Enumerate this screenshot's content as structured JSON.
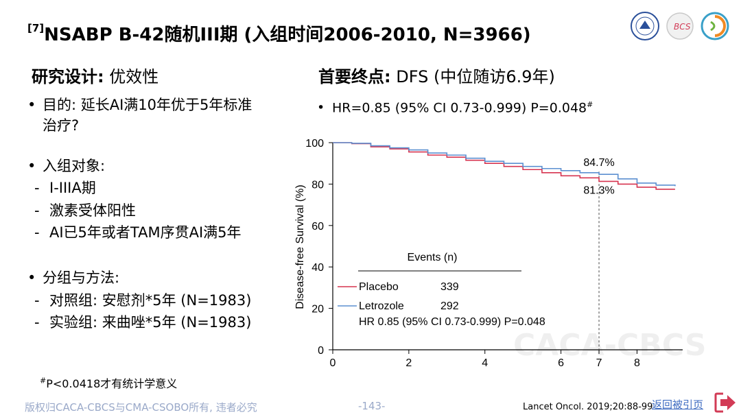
{
  "slide": {
    "title_ref": "[7]",
    "title": "NSABP B-42随机III期 (入组时间2006-2010, N=3966)"
  },
  "left": {
    "design_label": "研究设计:",
    "design_value": " 优效性",
    "purpose_line1": "目的: 延长AI满10年优于5年标准",
    "purpose_line2": "治疗?",
    "population_title": "入组对象:",
    "population_items": [
      "I-IIIA期",
      "激素受体阳性",
      "AI已5年或者TAM序贯AI满5年"
    ],
    "grouping_title": "分组与方法:",
    "grouping_items": [
      "对照组: 安慰剂*5年 (N=1983)",
      "实验组: 来曲唑*5年 (N=1983)"
    ]
  },
  "right": {
    "endpoint_label": "首要终点:",
    "endpoint_value": " DFS (中位随访6.9年)",
    "hr_line": "HR=0.85 (95% CI 0.73-0.999) P=0.048",
    "hr_sup": "#"
  },
  "chart_data": {
    "type": "line",
    "ylabel": "Disease-free Survival (%)",
    "xlabel": "",
    "xlim": [
      0,
      9.2
    ],
    "ylim": [
      0,
      100
    ],
    "xticks": [
      0,
      2,
      4,
      6,
      7,
      8
    ],
    "yticks": [
      0,
      20,
      40,
      60,
      80,
      100
    ],
    "reference_line_x": 7,
    "series": [
      {
        "name": "Placebo",
        "color": "#d6334f",
        "events": "339",
        "x": [
          0,
          0.5,
          1,
          1.5,
          2,
          2.5,
          3,
          3.5,
          4,
          4.5,
          5,
          5.5,
          6,
          6.5,
          7,
          7.5,
          8,
          8.5,
          9
        ],
        "y": [
          100,
          99.5,
          98,
          97,
          95.5,
          94,
          93,
          91.5,
          90,
          88.5,
          87,
          85.5,
          84,
          83,
          81.3,
          80,
          78.5,
          77.5,
          77.5
        ]
      },
      {
        "name": "Letrozole",
        "color": "#5b8fd0",
        "events": "292",
        "x": [
          0,
          0.5,
          1,
          1.5,
          2,
          2.5,
          3,
          3.5,
          4,
          4.5,
          5,
          5.5,
          6,
          6.5,
          7,
          7.5,
          8,
          8.5,
          9
        ],
        "y": [
          100,
          99.7,
          98.5,
          97.5,
          96.5,
          95,
          94,
          92.5,
          91,
          90,
          88.5,
          87.5,
          86.5,
          85.5,
          84.7,
          82.5,
          80.5,
          79.5,
          79
        ]
      }
    ],
    "annotations": [
      "84.7%",
      "81.3%"
    ],
    "legend_title": "Events (n)",
    "hr_text": "HR 0.85 (95% CI 0.73-0.999) P=0.048"
  },
  "footer": {
    "note_sup": "#",
    "note": "P<0.0418才有统计学意义",
    "copyright": "版权归CACA-CBCS与CMA-CSOBO所有, 违者必究",
    "page": "-143-",
    "citation": "Lancet Oncol. 2019;20:88-99",
    "back_link": "返回被引页"
  },
  "watermark": "CACA-CBCS",
  "colors": {
    "accent_back": "#d23b56",
    "link": "#3c6ac0",
    "footer_gray": "#9aa9c9"
  }
}
